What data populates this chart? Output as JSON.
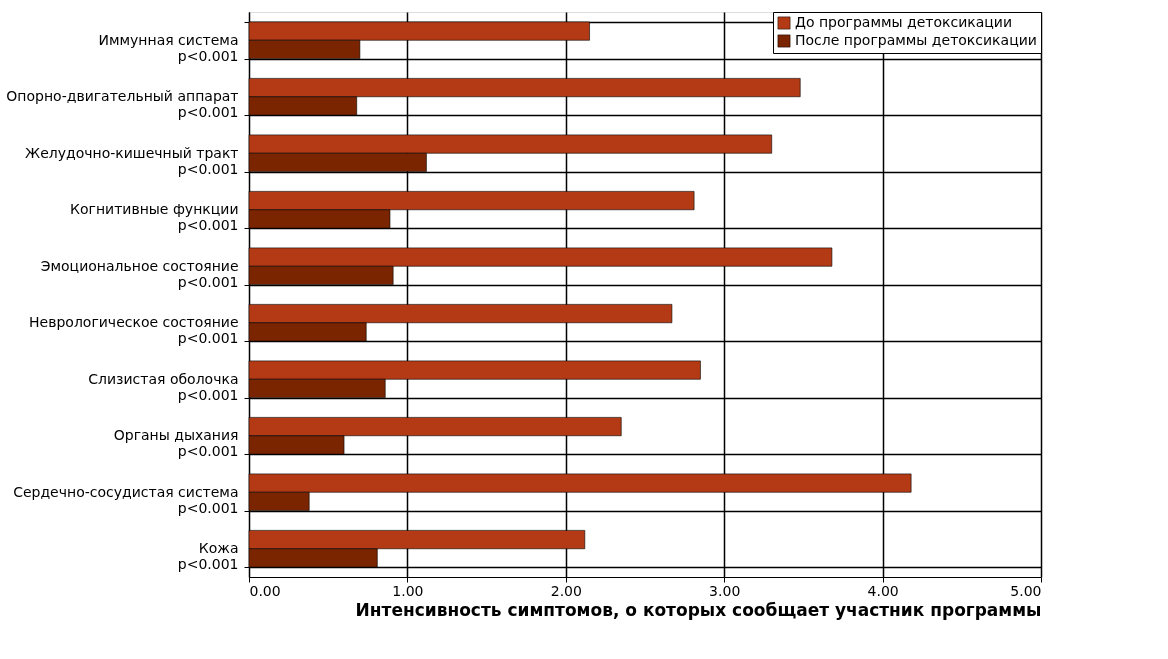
{
  "chart_data": {
    "type": "bar",
    "orientation": "horizontal",
    "xlabel": "Интенсивность симптомов, о которых сообщает участник программы",
    "categories": [
      "Иммунная система\np<0.001",
      "Опорно-двигательный аппарат\np<0.001",
      "Желудочно-кишечный тракт\np<0.001",
      "Когнитивные функции\np<0.001",
      "Эмоциональное состояние\np<0.001",
      "Неврологическое состояние\np<0.001",
      "Слизистая оболочка\np<0.001",
      "Органы дыхания\np<0.001",
      "Сердечно-сосудистая система\np<0.001",
      "Кожа\np<0.001"
    ],
    "series": [
      {
        "name": "До программы детоксикации",
        "color": "#b33a14",
        "values": [
          2.15,
          3.48,
          3.3,
          2.81,
          3.68,
          2.67,
          2.85,
          2.35,
          4.18,
          2.12
        ]
      },
      {
        "name": "После программы детоксикации",
        "color": "#7a2400",
        "values": [
          0.7,
          0.68,
          1.12,
          0.89,
          0.91,
          0.74,
          0.86,
          0.6,
          0.38,
          0.81
        ]
      }
    ],
    "xlim": [
      0,
      5
    ],
    "xticks": [
      {
        "value": 0,
        "label": "0.00"
      },
      {
        "value": 1,
        "label": "1.00"
      },
      {
        "value": 2,
        "label": "2.00"
      },
      {
        "value": 3,
        "label": "3.00"
      },
      {
        "value": 4,
        "label": "4.00"
      },
      {
        "value": 5,
        "label": "5.00"
      }
    ],
    "grid": true,
    "legend": "top right"
  }
}
